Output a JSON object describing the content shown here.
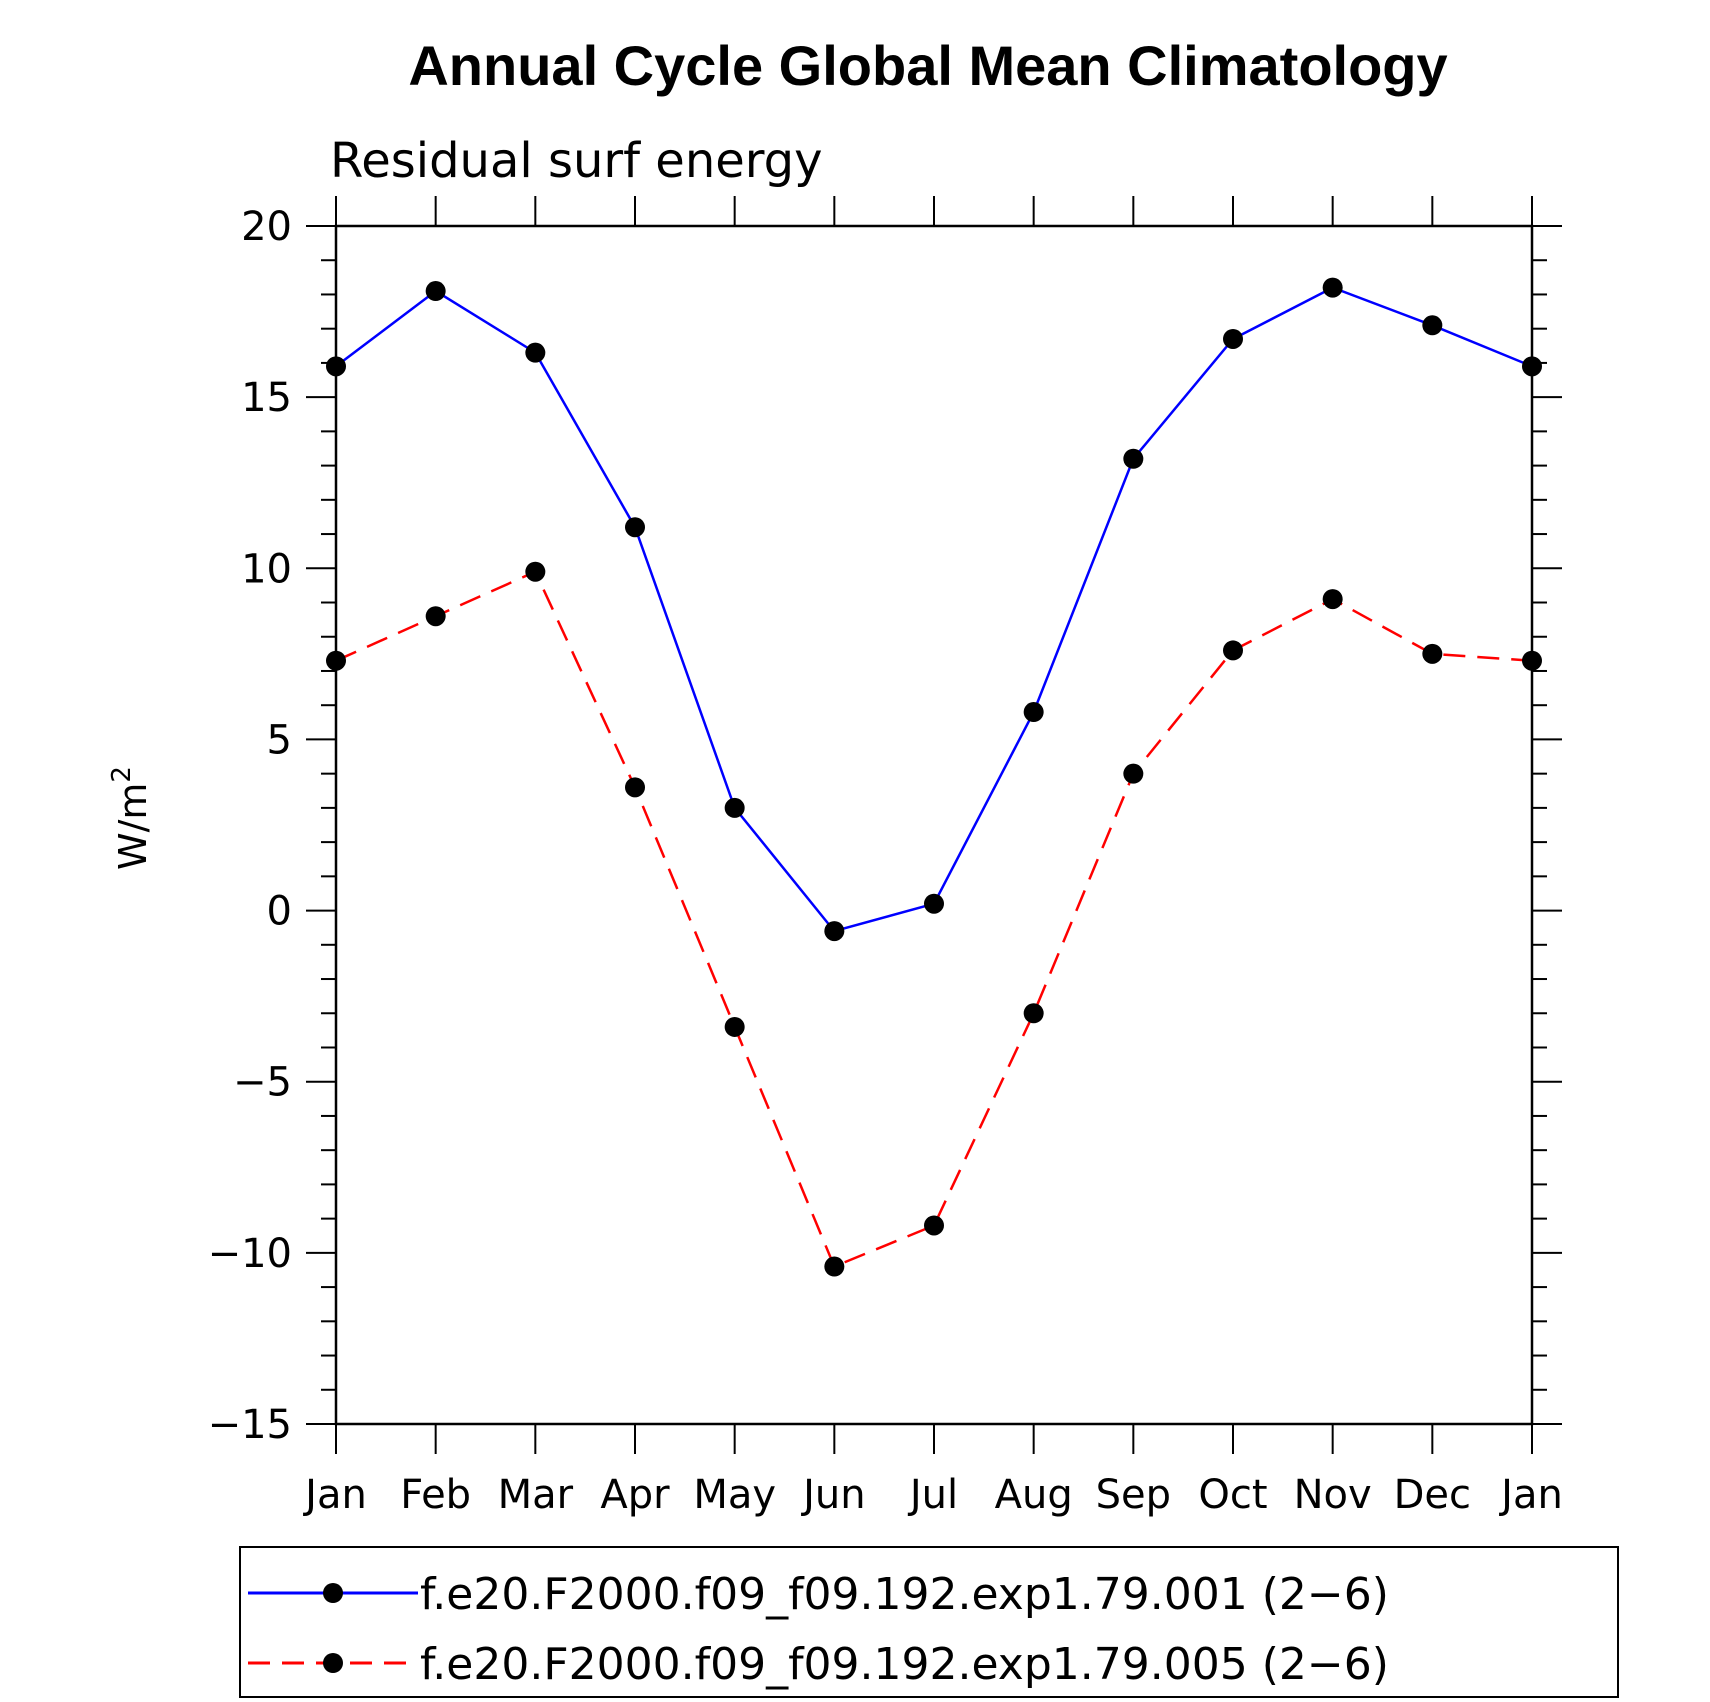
{
  "chart_data": {
    "type": "line",
    "title": "Annual Cycle Global Mean Climatology",
    "subtitle": "Residual surf energy",
    "xlabel": "",
    "ylabel": "W/m",
    "ylabel_superscript": "2",
    "categories": [
      "Jan",
      "Feb",
      "Mar",
      "Apr",
      "May",
      "Jun",
      "Jul",
      "Aug",
      "Sep",
      "Oct",
      "Nov",
      "Dec",
      "Jan"
    ],
    "ylim": [
      -15,
      20
    ],
    "yticks": [
      -15,
      -10,
      -5,
      0,
      5,
      10,
      15,
      20
    ],
    "ytick_labels": [
      "−15",
      "−10",
      "−5",
      "0",
      "5",
      "10",
      "15",
      "20"
    ],
    "grid": false,
    "legend_position": "bottom",
    "series": [
      {
        "name": "f.e20.F2000.f09_f09.192.exp1.79.001 (2−6)",
        "color": "#0000ff",
        "line_style": "solid",
        "marker": "filled-circle",
        "values": [
          15.9,
          18.1,
          16.3,
          11.2,
          3.0,
          -0.6,
          0.2,
          5.8,
          13.2,
          16.7,
          18.2,
          17.1,
          15.9
        ]
      },
      {
        "name": "f.e20.F2000.f09_f09.192.exp1.79.005 (2−6)",
        "color": "#ff0000",
        "line_style": "dashed",
        "marker": "filled-circle",
        "values": [
          7.3,
          8.6,
          9.9,
          3.6,
          -3.4,
          -10.4,
          -9.2,
          -3.0,
          4.0,
          7.6,
          9.1,
          7.5,
          7.3
        ]
      }
    ]
  }
}
